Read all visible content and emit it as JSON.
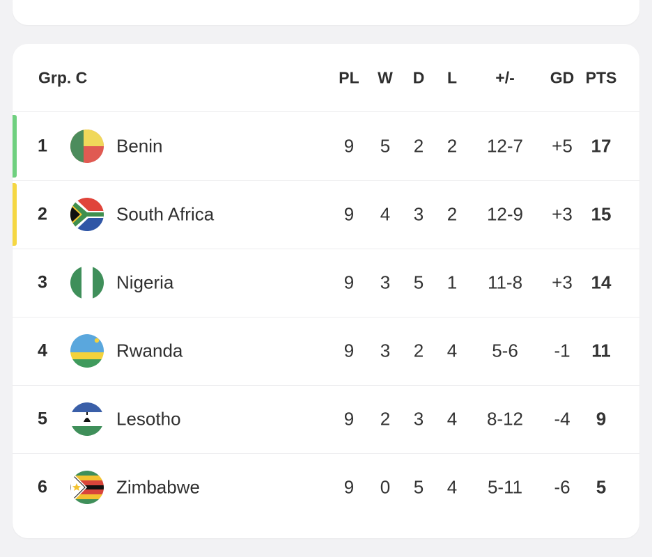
{
  "group": {
    "title": "Grp. C",
    "columns": {
      "pl": "PL",
      "w": "W",
      "d": "D",
      "l": "L",
      "goals": "+/-",
      "gd": "GD",
      "pts": "PTS"
    },
    "rows": [
      {
        "rank": "1",
        "team": "Benin",
        "pl": "9",
        "w": "5",
        "d": "2",
        "l": "2",
        "goals": "12-7",
        "gd": "+5",
        "pts": "17",
        "flag_icon": "benin-flag-icon",
        "indicator_color": "#6fd07f"
      },
      {
        "rank": "2",
        "team": "South Africa",
        "pl": "9",
        "w": "4",
        "d": "3",
        "l": "2",
        "goals": "12-9",
        "gd": "+3",
        "pts": "15",
        "flag_icon": "south-africa-flag-icon",
        "indicator_color": "#f5d742"
      },
      {
        "rank": "3",
        "team": "Nigeria",
        "pl": "9",
        "w": "3",
        "d": "5",
        "l": "1",
        "goals": "11-8",
        "gd": "+3",
        "pts": "14",
        "flag_icon": "nigeria-flag-icon",
        "indicator_color": ""
      },
      {
        "rank": "4",
        "team": "Rwanda",
        "pl": "9",
        "w": "3",
        "d": "2",
        "l": "4",
        "goals": "5-6",
        "gd": "-1",
        "pts": "11",
        "flag_icon": "rwanda-flag-icon",
        "indicator_color": ""
      },
      {
        "rank": "5",
        "team": "Lesotho",
        "pl": "9",
        "w": "2",
        "d": "3",
        "l": "4",
        "goals": "8-12",
        "gd": "-4",
        "pts": "9",
        "flag_icon": "lesotho-flag-icon",
        "indicator_color": ""
      },
      {
        "rank": "6",
        "team": "Zimbabwe",
        "pl": "9",
        "w": "0",
        "d": "5",
        "l": "4",
        "goals": "5-11",
        "gd": "-6",
        "pts": "5",
        "flag_icon": "zimbabwe-flag-icon",
        "indicator_color": ""
      }
    ]
  }
}
